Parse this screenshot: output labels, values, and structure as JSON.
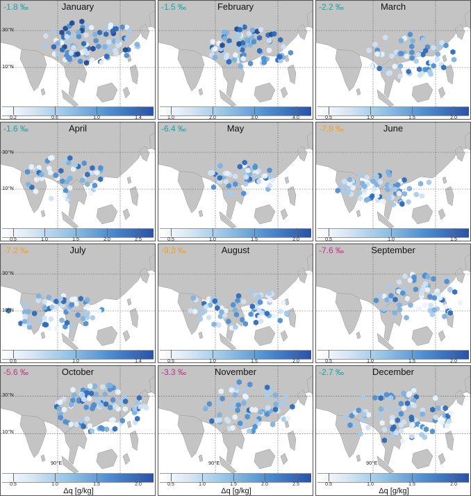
{
  "unit_label": "Δq [g/kg]",
  "lat_labels": [
    "30°N",
    "10°N"
  ],
  "lon_label": "90°E",
  "colors": {
    "teal": "#17a2a2",
    "orange": "#f2a01a",
    "magenta": "#c0308a",
    "land": "#c4c4c4",
    "ocean": "#ffffff"
  },
  "panels": [
    {
      "month": "January",
      "value": "-1.8 ‰",
      "color": "teal",
      "ticks": [
        "0.2",
        "0.6",
        "1.0",
        "1.4"
      ]
    },
    {
      "month": "February",
      "value": "-1.5 ‰",
      "color": "teal",
      "ticks": [
        "1.0",
        "2.0",
        "3.0",
        "4.0"
      ]
    },
    {
      "month": "March",
      "value": "-2.2 ‰",
      "color": "teal",
      "ticks": [
        "0.5",
        "1.0",
        "1.5",
        "2.0"
      ]
    },
    {
      "month": "April",
      "value": "-1.6 ‰",
      "color": "teal",
      "ticks": [
        "0.5",
        "1.0",
        "1.5",
        "2.0",
        "2.5"
      ]
    },
    {
      "month": "May",
      "value": "-6.4 ‰",
      "color": "teal",
      "ticks": [
        "0.5",
        "1.0",
        "1.5",
        "2.0"
      ]
    },
    {
      "month": "June",
      "value": "-7.8 ‰",
      "color": "orange",
      "ticks": [
        "0.5",
        "1.0",
        "1.5"
      ]
    },
    {
      "month": "July",
      "value": "-7.2 ‰",
      "color": "orange",
      "ticks": [
        "0.6",
        "1.0",
        "1.4"
      ]
    },
    {
      "month": "August",
      "value": "-9.3 ‰",
      "color": "orange",
      "ticks": [
        "0.5",
        "1.0",
        "1.5",
        "2.0"
      ]
    },
    {
      "month": "September",
      "value": "-7.6 ‰",
      "color": "magenta",
      "ticks": [
        "0.5",
        "1.0",
        "1.5",
        "2.0"
      ]
    },
    {
      "month": "October",
      "value": "-5.6 ‰",
      "color": "magenta",
      "ticks": [
        "0.5",
        "1.0",
        "1.5",
        "2.0"
      ]
    },
    {
      "month": "November",
      "value": "-3.3 ‰",
      "color": "magenta",
      "ticks": [
        "0.5",
        "1.0",
        "1.5",
        "2.0",
        "2.5"
      ]
    },
    {
      "month": "December",
      "value": "-2.7 ‰",
      "color": "teal",
      "ticks": [
        "0.5",
        "1.0",
        "1.5",
        "2.0"
      ]
    }
  ]
}
